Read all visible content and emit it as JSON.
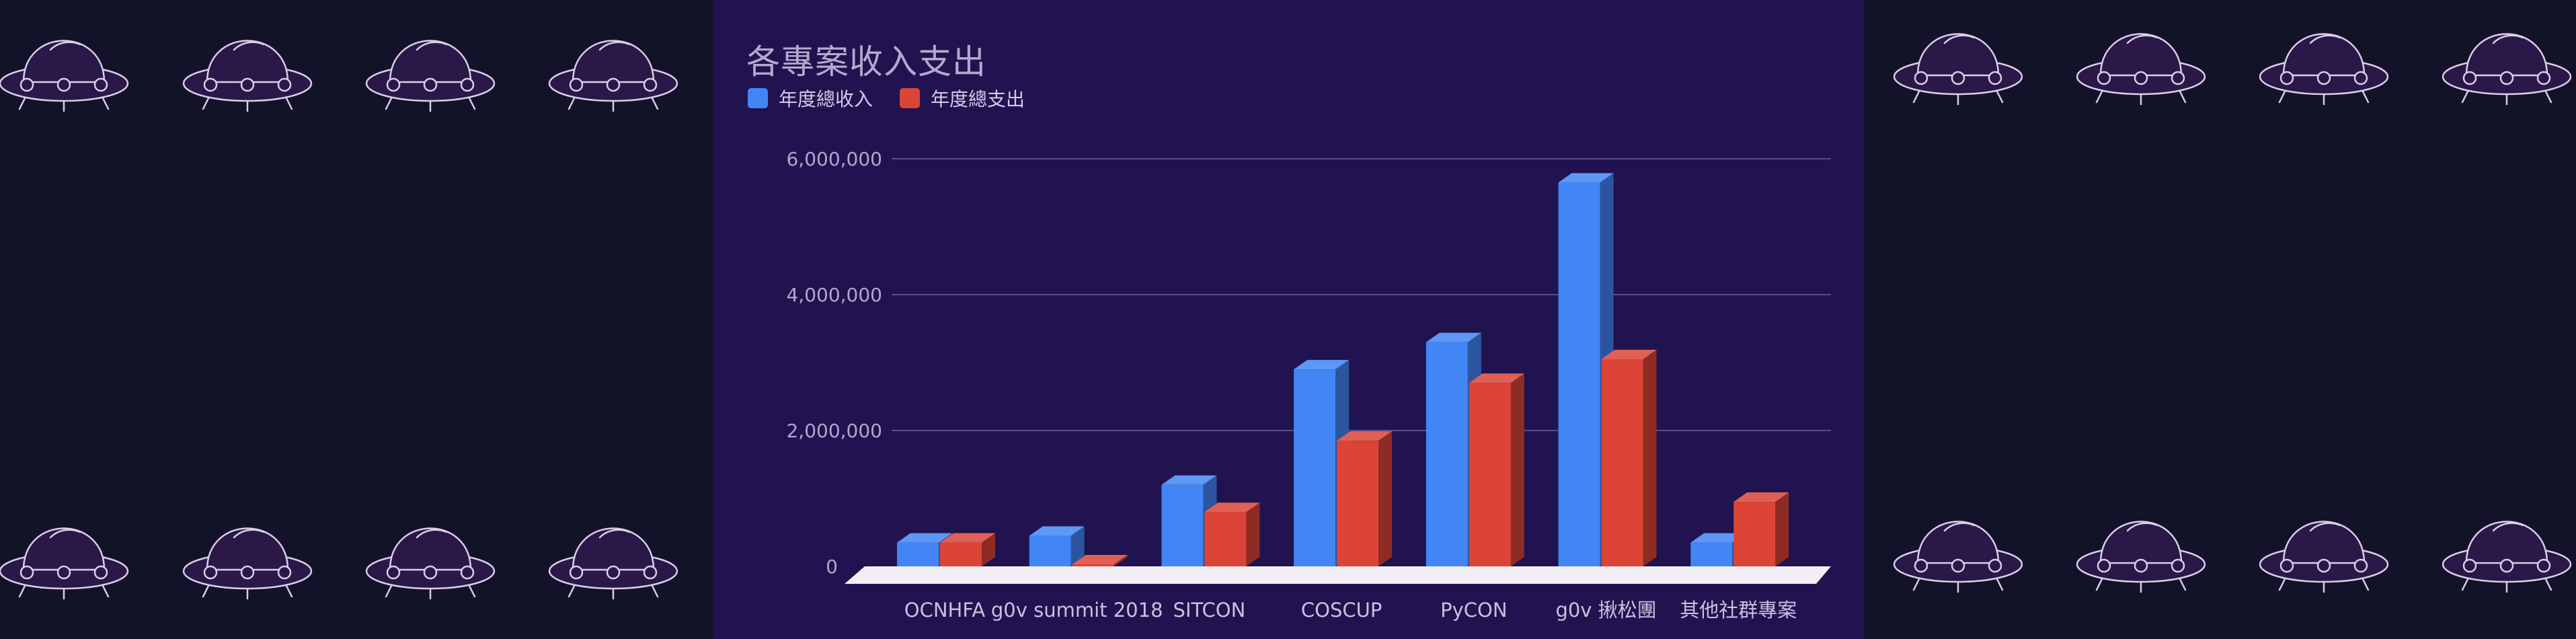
{
  "colors": {
    "page_bg": "#121328",
    "panel_bg": "#20134f",
    "income": "#4285f4",
    "expense": "#db4437",
    "grid": "#55508a",
    "floor": "#f1eff4",
    "ufo_outline": "#dccde8",
    "ufo_fill": "#2a1848"
  },
  "decorations": {
    "ufo_icon": "ufo-icon"
  },
  "chart_data": {
    "type": "bar",
    "title": "各專案收入支出",
    "categories": [
      "OCNHFA",
      "g0v summit 2018",
      "SITCON",
      "COSCUP",
      "PyCON",
      "g0v 揪松團",
      "其他社群專案"
    ],
    "series": [
      {
        "name": "年度總收入",
        "color": "#4285f4",
        "values": [
          350000,
          450000,
          1200000,
          2900000,
          3300000,
          5650000,
          350000
        ]
      },
      {
        "name": "年度總支出",
        "color": "#db4437",
        "values": [
          350000,
          30000,
          800000,
          1850000,
          2700000,
          3050000,
          950000
        ]
      }
    ],
    "yticks": [
      {
        "value": 0,
        "label": "0"
      },
      {
        "value": 2000000,
        "label": "2,000,000"
      },
      {
        "value": 4000000,
        "label": "4,000,000"
      },
      {
        "value": 6000000,
        "label": "6,000,000"
      }
    ],
    "ylim": [
      0,
      6000000
    ],
    "grid": true,
    "legend_position": "top-left",
    "style": "3d-columns"
  }
}
